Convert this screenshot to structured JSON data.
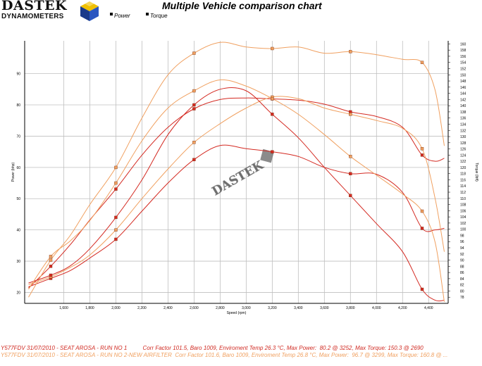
{
  "brand": {
    "top": "DASTEK",
    "bottom": "DYNAMOMETERS"
  },
  "title": "Multiple Vehicle comparison chart",
  "legend": {
    "power": "Power",
    "torque": "Torque"
  },
  "watermark": "DASTEK",
  "colors": {
    "run1": "#d42a22",
    "run2": "#f0a060",
    "grid": "#bfbfbf",
    "frame": "#000000"
  },
  "footer": {
    "line1": "Y577FDV 31/07/2010 - SEAT AROSA - RUN NO 1          Corr Factor 101.5, Baro 1009, Enviroment Temp 26.3 °C, Max Power:  80.2 @ 3252, Max Torque: 150.3 @ 2690",
    "line2": "Y577FDV 31/07/2010 - SEAT AROSA - RUN NO 2-NEW AIRFILTER  Corr Factor 101.6, Baro 1009, Enviroment Temp 26.8 °C, Max Power:  96.7 @ 3299, Max Torque: 160.8 @ ..."
  },
  "chart_data": {
    "type": "line",
    "xlabel": "Speed (rpm)",
    "ylabel": "Power (bhp)",
    "y2label": "Torque (lbft)",
    "xlim": [
      1300,
      4550
    ],
    "ylim": [
      16.5,
      100.5
    ],
    "y2lim": [
      76,
      161
    ],
    "x_ticks": [
      1600,
      1800,
      2000,
      2200,
      2400,
      2600,
      2800,
      3000,
      3200,
      3400,
      3600,
      3800,
      4000,
      4200,
      4400
    ],
    "y_ticks": [
      20,
      30,
      40,
      50,
      60,
      70,
      80,
      90
    ],
    "y2_ticks": [
      78,
      80,
      82,
      84,
      86,
      88,
      90,
      92,
      94,
      96,
      98,
      100,
      102,
      104,
      106,
      108,
      110,
      112,
      114,
      116,
      118,
      120,
      122,
      124,
      126,
      128,
      130,
      132,
      134,
      136,
      138,
      140,
      142,
      144,
      146,
      148,
      150,
      152,
      154,
      156,
      158,
      160
    ],
    "grid": true,
    "series": [
      {
        "name": "RUN NO 1",
        "measure": "Power",
        "axis": "left",
        "color": "#d42a22",
        "x": [
          1330,
          1500,
          1650,
          1800,
          2000,
          2200,
          2400,
          2600,
          2800,
          3000,
          3200,
          3400,
          3600,
          3800,
          4000,
          4200,
          4350,
          4450,
          4520
        ],
        "values": [
          21.8,
          24.5,
          27.0,
          31.0,
          37.0,
          46.0,
          55.0,
          62.5,
          67.0,
          66.0,
          65.0,
          63.5,
          60.0,
          58.0,
          57.8,
          52.0,
          40.5,
          40.0,
          40.5
        ]
      },
      {
        "name": "RUN NO 1",
        "measure": "Torque",
        "axis": "right",
        "color": "#d42a22",
        "x": [
          1330,
          1500,
          1650,
          1800,
          2000,
          2200,
          2400,
          2600,
          2800,
          3000,
          3200,
          3400,
          3600,
          3800,
          4000,
          4200,
          4350,
          4450,
          4520
        ],
        "values": [
          81.0,
          88.0,
          95.0,
          103.0,
          113.0,
          124.0,
          133.0,
          139.0,
          142.0,
          142.5,
          142.2,
          141.8,
          140.5,
          138.0,
          136.5,
          133.0,
          124.0,
          122.0,
          123.0
        ]
      },
      {
        "name": "RUN NO 2-NEW AIRFILTER",
        "measure": "Power",
        "axis": "left",
        "color": "#f0a060",
        "x": [
          1330,
          1500,
          1650,
          1800,
          2000,
          2200,
          2400,
          2600,
          2800,
          3000,
          3200,
          3400,
          3600,
          3800,
          4000,
          4200,
          4350,
          4450,
          4520
        ],
        "values": [
          22.5,
          25.0,
          28.0,
          32.0,
          40.0,
          50.0,
          59.5,
          68.0,
          74.0,
          79.0,
          82.5,
          82.0,
          79.0,
          77.0,
          75.0,
          72.5,
          66.0,
          50.0,
          33.0
        ]
      },
      {
        "name": "RUN NO 2-NEW AIRFILTER",
        "measure": "Torque",
        "axis": "right",
        "color": "#f0a060",
        "x": [
          1330,
          1500,
          1650,
          1800,
          2000,
          2200,
          2400,
          2600,
          2800,
          3000,
          3200,
          3400,
          3600,
          3800,
          4000,
          4200,
          4350,
          4450,
          4520
        ],
        "values": [
          78.0,
          90.0,
          98.0,
          108.0,
          120.0,
          136.0,
          150.0,
          157.0,
          160.5,
          159.0,
          158.5,
          159.0,
          157.0,
          157.5,
          156.5,
          155.0,
          154.0,
          145.0,
          127.0
        ]
      },
      {
        "name": "RUN NO 1",
        "measure": "Power (upper)",
        "axis": "left",
        "color": "#d42a22",
        "x": [
          1330,
          1500,
          1650,
          1800,
          2000,
          2200,
          2400,
          2600,
          2800,
          3000,
          3200,
          3400,
          3600,
          3800,
          4000,
          4200,
          4350,
          4450,
          4520
        ],
        "values": [
          23.0,
          25.5,
          28.5,
          34.0,
          44.0,
          56.0,
          70.5,
          80.0,
          85.0,
          84.5,
          77.0,
          69.5,
          60.0,
          51.0,
          42.0,
          33.0,
          21.0,
          17.5,
          17.5
        ]
      },
      {
        "name": "RUN NO 2-NEW AIRFILTER",
        "measure": "Power (upper)",
        "axis": "left",
        "color": "#f0a060",
        "x": [
          1330,
          1500,
          1650,
          1800,
          2000,
          2200,
          2400,
          2600,
          2800,
          3000,
          3200,
          3400,
          3600,
          3800,
          4000,
          4200,
          4350,
          4450,
          4520
        ],
        "values": [
          21.0,
          31.5,
          36.5,
          43.0,
          55.0,
          68.5,
          79.0,
          84.5,
          88.0,
          86.0,
          82.0,
          77.0,
          70.5,
          63.5,
          57.5,
          51.5,
          46.0,
          36.0,
          17.0
        ]
      }
    ]
  }
}
